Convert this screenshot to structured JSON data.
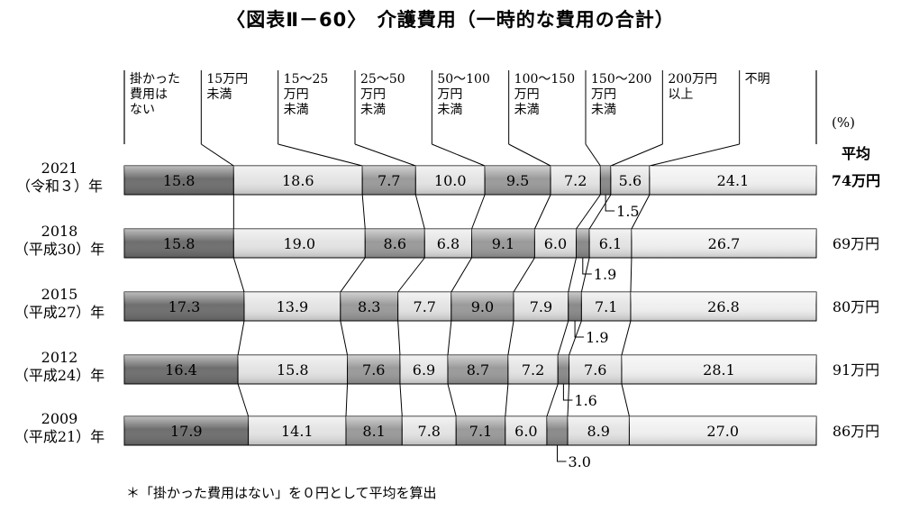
{
  "figure_title": "〈図表Ⅱ－60〉　介護費用（一時的な費用の合計）",
  "footnote": "＊「掛かった費用はない」を０円として平均を算出",
  "unit_label": "(%)",
  "average_label": "平均",
  "chart_data": {
    "type": "bar",
    "stacked": true,
    "orientation": "horizontal",
    "title": "〈図表Ⅱ－60〉　介護費用（一時的な費用の合計）",
    "unit": "(%)",
    "categories": [
      {
        "year": "2021",
        "era": "（令和３）年",
        "average": "74万円"
      },
      {
        "year": "2018",
        "era": "（平成30）年",
        "average": "69万円"
      },
      {
        "year": "2015",
        "era": "（平成27）年",
        "average": "80万円"
      },
      {
        "year": "2012",
        "era": "（平成24）年",
        "average": "91万円"
      },
      {
        "year": "2009",
        "era": "（平成21）年",
        "average": "86万円"
      }
    ],
    "series": [
      {
        "name": "掛かった費用はない",
        "lines": [
          "掛かった",
          "費用は",
          "ない"
        ],
        "color": "#6e6e6e",
        "values": [
          15.8,
          15.8,
          17.3,
          16.4,
          17.9
        ]
      },
      {
        "name": "15万円未満",
        "lines": [
          "15万円",
          "未満"
        ],
        "color": "#e4e4e4",
        "values": [
          18.6,
          19.0,
          13.9,
          15.8,
          14.1
        ]
      },
      {
        "name": "15～25万円未満",
        "lines": [
          "15～25",
          "万円",
          "未満"
        ],
        "color": "#9a9a9a",
        "values": [
          7.7,
          8.6,
          8.3,
          7.6,
          8.1
        ]
      },
      {
        "name": "25～50万円未満",
        "lines": [
          "25～50",
          "万円",
          "未満"
        ],
        "color": "#e4e4e4",
        "values": [
          10.0,
          6.8,
          7.7,
          6.9,
          7.8
        ]
      },
      {
        "name": "50～100万円未満",
        "lines": [
          "50～100",
          "万円",
          "未満"
        ],
        "color": "#9a9a9a",
        "values": [
          9.5,
          9.1,
          9.0,
          8.7,
          7.1
        ]
      },
      {
        "name": "100～150万円未満",
        "lines": [
          "100～150",
          "万円",
          "未満"
        ],
        "color": "#e4e4e4",
        "values": [
          7.2,
          6.0,
          7.9,
          7.2,
          6.0
        ]
      },
      {
        "name": "150～200万円未満",
        "lines": [
          "150～200",
          "万円",
          "未満"
        ],
        "color": "#8a8a8a",
        "values": [
          1.5,
          1.9,
          1.9,
          1.6,
          3.0
        ]
      },
      {
        "name": "200万円以上",
        "lines": [
          "200万円",
          "以上"
        ],
        "color": "#e4e4e4",
        "values": [
          5.6,
          6.1,
          7.1,
          7.6,
          8.9
        ]
      },
      {
        "name": "不明",
        "lines": [
          "不明"
        ],
        "color": "#f0f0f0",
        "values": [
          24.1,
          26.7,
          26.8,
          28.1,
          27.0
        ]
      }
    ],
    "value_labels": [
      [
        "15.8",
        "18.6",
        "7.7",
        "10.0",
        "9.5",
        "7.2",
        "1.5",
        "5.6",
        "24.1"
      ],
      [
        "15.8",
        "19.0",
        "8.6",
        "6.8",
        "9.1",
        "6.0",
        "1.9",
        "6.1",
        "26.7"
      ],
      [
        "17.3",
        "13.9",
        "8.3",
        "7.7",
        "9.0",
        "7.9",
        "1.9",
        "7.1",
        "26.8"
      ],
      [
        "16.4",
        "15.8",
        "7.6",
        "6.9",
        "8.7",
        "7.2",
        "1.6",
        "7.6",
        "28.1"
      ],
      [
        "17.9",
        "14.1",
        "8.1",
        "7.8",
        "7.1",
        "6.0",
        "3.0",
        "8.9",
        "27.0"
      ]
    ],
    "callout_series_index": 6,
    "xlim": [
      0,
      100
    ],
    "grid": false,
    "legend": "top"
  }
}
